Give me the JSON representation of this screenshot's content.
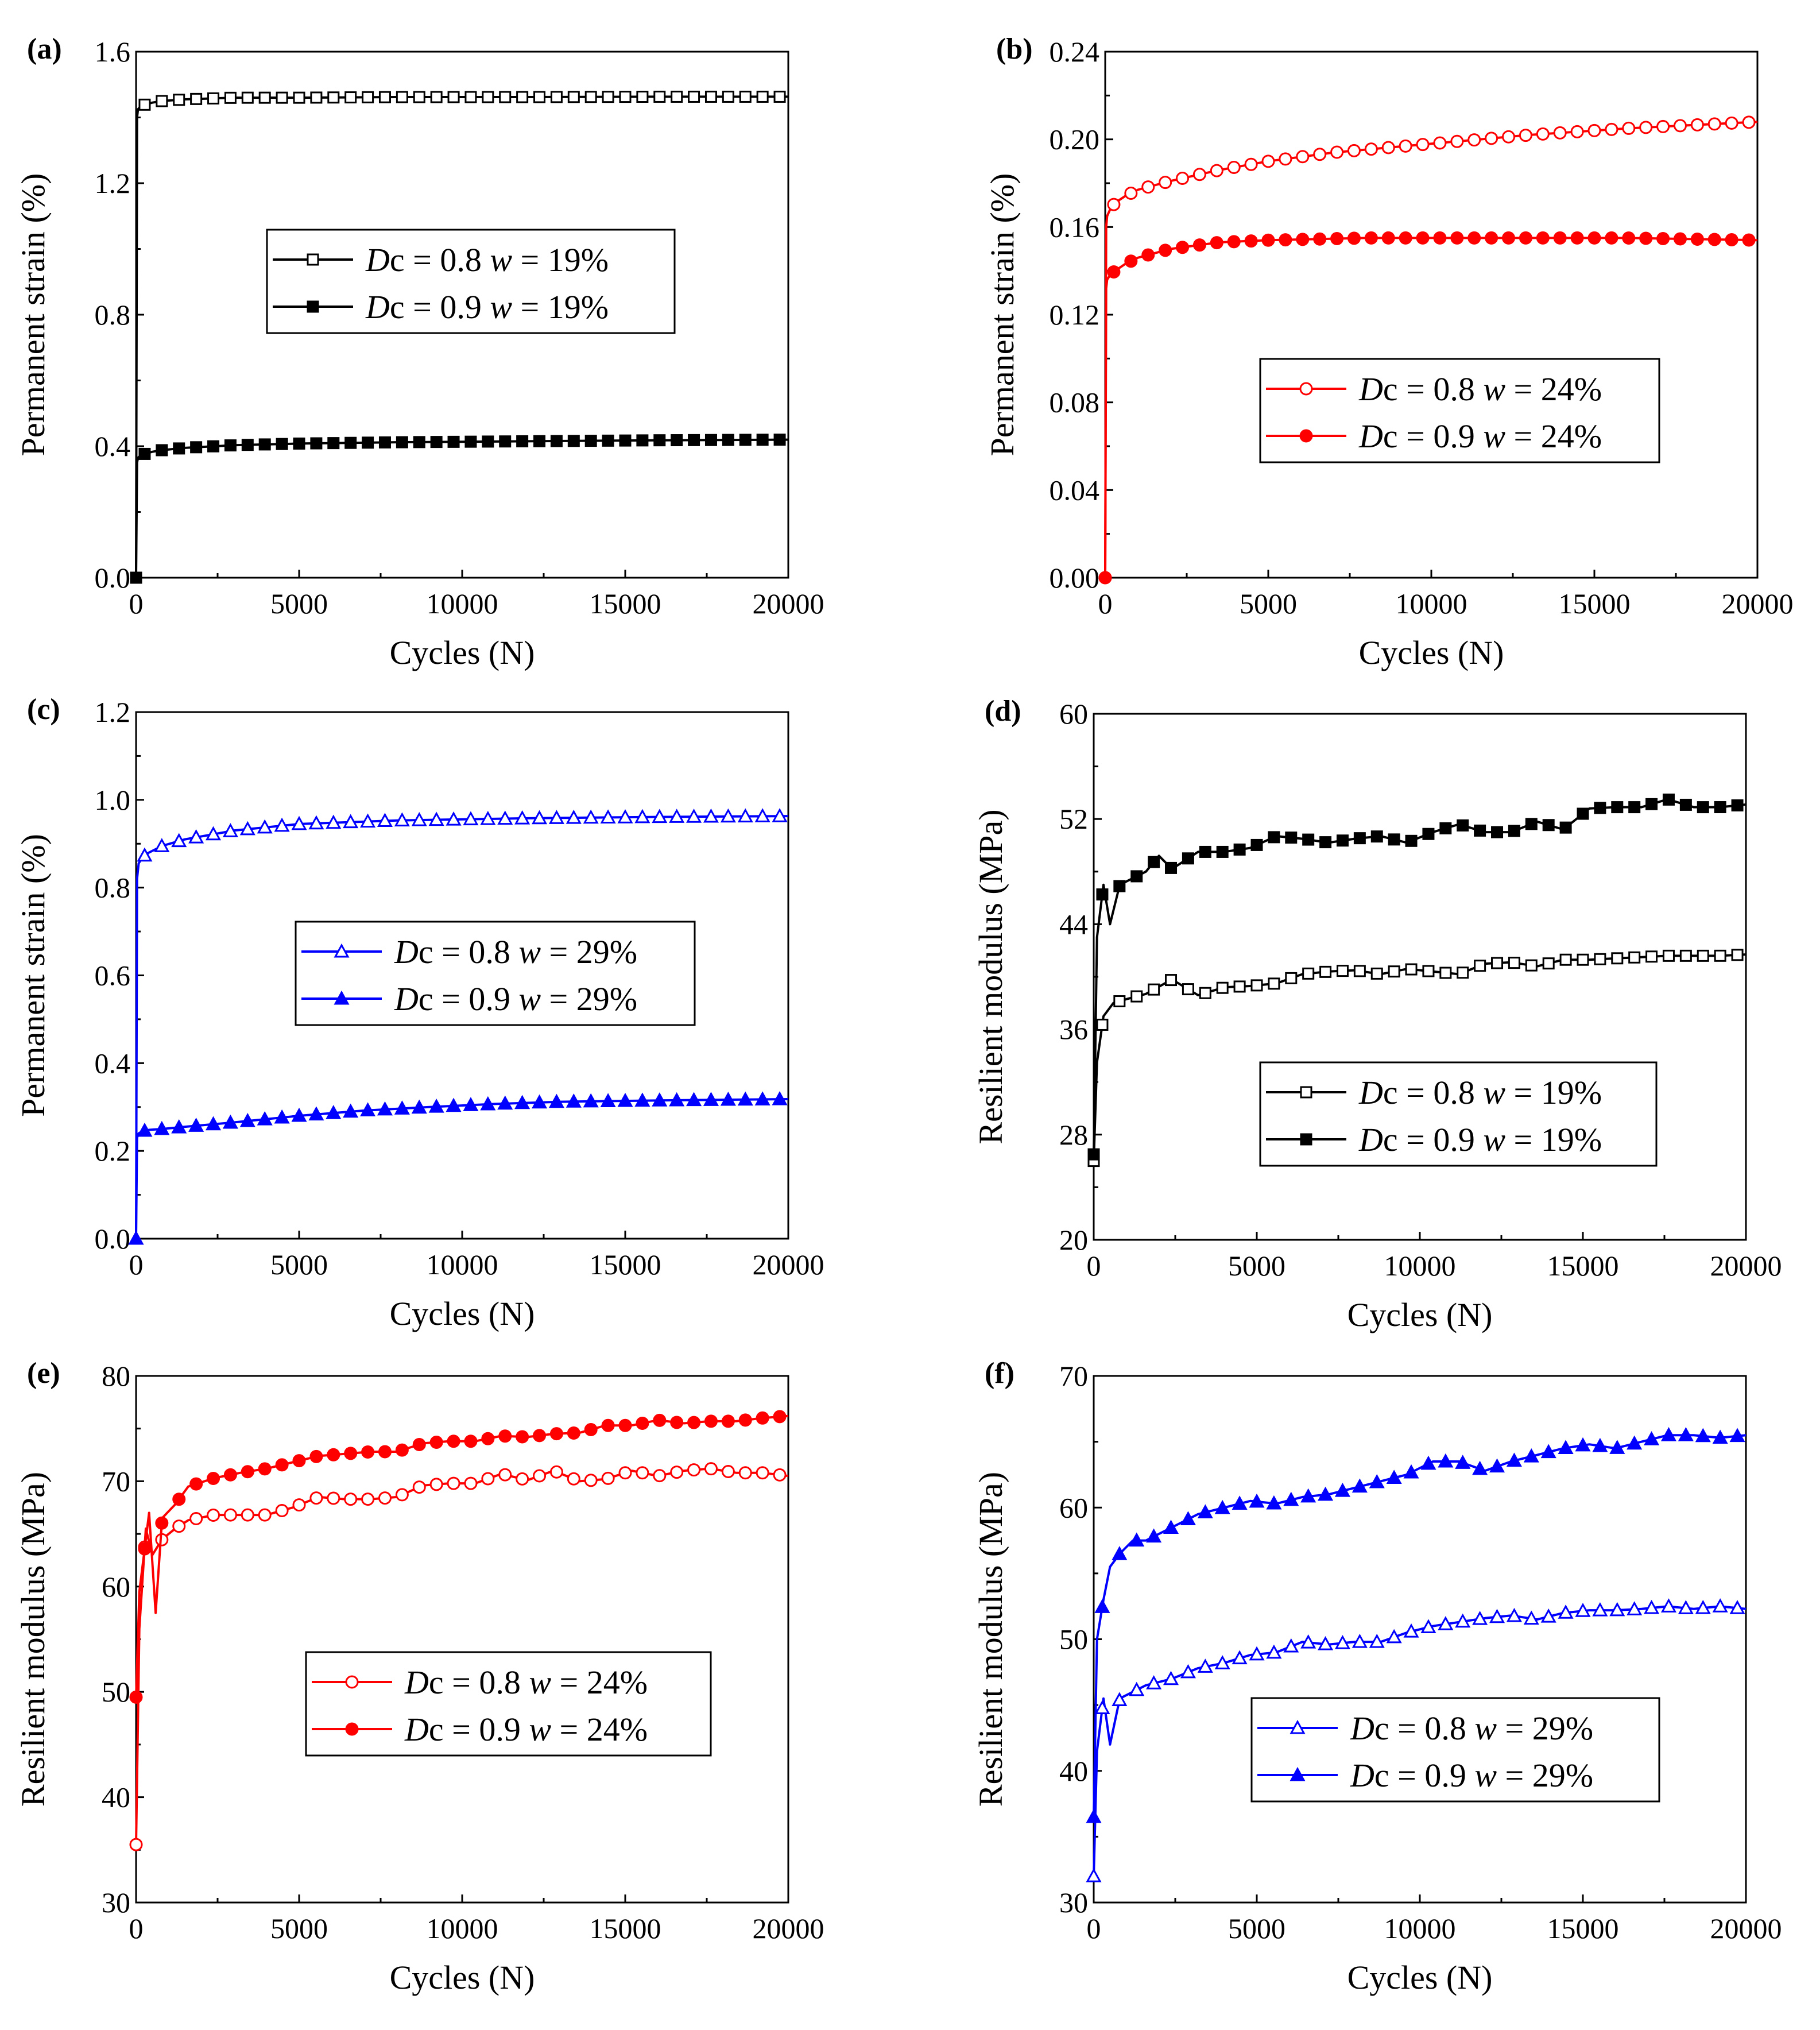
{
  "figure": {
    "title": ""
  },
  "colors": {
    "black": "#000000",
    "red": "#ff0000",
    "blue": "#0000ff"
  },
  "chart_data": [
    {
      "panel": "(a)",
      "type": "line",
      "xlabel": "Cycles (N)",
      "ylabel": "Permanent strain (%)",
      "xlim": [
        0,
        20000
      ],
      "ylim": [
        0,
        1.6
      ],
      "xticks": [
        "0",
        "5000",
        "10000",
        "15000",
        "20000"
      ],
      "yticks": [
        "0.0",
        "0.4",
        "0.8",
        "1.2",
        "1.6"
      ],
      "color": "#000000",
      "legend_position": "center",
      "series": [
        {
          "name": "Dc = 0.8 w = 19%",
          "legend": {
            "pre": "D",
            "mid": "c = 0.8 ",
            "it": "w",
            "post": " = 19%"
          },
          "marker": "square-open",
          "x": [
            0,
            30,
            60,
            150,
            300,
            500,
            800,
            1500,
            3000,
            5000,
            8000,
            12000,
            16000,
            20000
          ],
          "y": [
            0,
            1.4,
            1.425,
            1.435,
            1.44,
            1.445,
            1.45,
            1.455,
            1.46,
            1.46,
            1.462,
            1.462,
            1.463,
            1.463
          ]
        },
        {
          "name": "Dc = 0.9 w = 19%",
          "legend": {
            "pre": "D",
            "mid": "c = 0.9 ",
            "it": "w",
            "post": " = 19%"
          },
          "marker": "square-filled",
          "x": [
            0,
            30,
            60,
            150,
            300,
            500,
            800,
            1500,
            3000,
            5000,
            8000,
            12000,
            16000,
            20000
          ],
          "y": [
            0,
            0.35,
            0.365,
            0.372,
            0.378,
            0.383,
            0.388,
            0.395,
            0.403,
            0.408,
            0.412,
            0.415,
            0.418,
            0.42
          ]
        }
      ]
    },
    {
      "panel": "(b)",
      "type": "line",
      "xlabel": "Cycles (N)",
      "ylabel": "Permanent strain (%)",
      "xlim": [
        0,
        20000
      ],
      "ylim": [
        0,
        0.24
      ],
      "xticks": [
        "0",
        "5000",
        "10000",
        "15000",
        "20000"
      ],
      "yticks": [
        "0.00",
        "0.04",
        "0.08",
        "0.12",
        "0.16",
        "0.20",
        "0.24"
      ],
      "color": "#ff0000",
      "legend_position": "center-right",
      "series": [
        {
          "name": "Dc = 0.8 w = 24%",
          "legend": {
            "pre": "D",
            "mid": "c = 0.8 ",
            "it": "w",
            "post": " = 24%"
          },
          "marker": "circle-open",
          "x": [
            0,
            30,
            60,
            150,
            300,
            600,
            1000,
            2000,
            3500,
            5000,
            7000,
            10000,
            13000,
            16000,
            20000
          ],
          "y": [
            0,
            0.16,
            0.165,
            0.168,
            0.171,
            0.174,
            0.177,
            0.181,
            0.186,
            0.19,
            0.194,
            0.198,
            0.202,
            0.205,
            0.208
          ]
        },
        {
          "name": "Dc = 0.9 w = 24%",
          "legend": {
            "pre": "D",
            "mid": "c = 0.9 ",
            "it": "w",
            "post": " = 24%"
          },
          "marker": "circle-filled",
          "x": [
            0,
            30,
            60,
            150,
            300,
            600,
            1000,
            2000,
            3500,
            5000,
            8000,
            12000,
            16000,
            20000
          ],
          "y": [
            0,
            0.132,
            0.136,
            0.138,
            0.14,
            0.143,
            0.146,
            0.15,
            0.153,
            0.154,
            0.155,
            0.155,
            0.155,
            0.154
          ]
        }
      ]
    },
    {
      "panel": "(c)",
      "type": "line",
      "xlabel": "Cycles (N)",
      "ylabel": "Permanent strain (%)",
      "xlim": [
        0,
        20000
      ],
      "ylim": [
        0,
        1.2
      ],
      "xticks": [
        "0",
        "5000",
        "10000",
        "15000",
        "20000"
      ],
      "yticks": [
        "0.0",
        "0.2",
        "0.4",
        "0.6",
        "0.8",
        "1.0",
        "1.2"
      ],
      "color": "#0000ff",
      "legend_position": "center",
      "series": [
        {
          "name": "Dc = 0.8 w = 29%",
          "legend": {
            "pre": "D",
            "mid": "c = 0.8 ",
            "it": "w",
            "post": " = 29%"
          },
          "marker": "triangle-open",
          "x": [
            0,
            30,
            80,
            200,
            400,
            800,
            1500,
            3000,
            5000,
            8000,
            12000,
            16000,
            20000
          ],
          "y": [
            0,
            0.82,
            0.855,
            0.87,
            0.88,
            0.895,
            0.91,
            0.93,
            0.945,
            0.953,
            0.958,
            0.961,
            0.963
          ]
        },
        {
          "name": "Dc = 0.9 w = 29%",
          "legend": {
            "pre": "D",
            "mid": "c = 0.9 ",
            "it": "w",
            "post": " = 29%"
          },
          "marker": "triangle-filled",
          "x": [
            0,
            30,
            80,
            200,
            400,
            800,
            1500,
            3000,
            5000,
            7000,
            9000,
            11000,
            13000,
            16000,
            20000
          ],
          "y": [
            0,
            0.23,
            0.24,
            0.245,
            0.248,
            0.25,
            0.255,
            0.265,
            0.28,
            0.292,
            0.3,
            0.307,
            0.312,
            0.315,
            0.318
          ]
        }
      ]
    },
    {
      "panel": "(d)",
      "type": "line",
      "xlabel": "Cycles (N)",
      "ylabel": "Resilient modulus (MPa)",
      "xlim": [
        0,
        20000
      ],
      "ylim": [
        20,
        60
      ],
      "xticks": [
        "0",
        "5000",
        "10000",
        "15000",
        "20000"
      ],
      "yticks": [
        "20",
        "28",
        "36",
        "44",
        "52",
        "60"
      ],
      "color": "#000000",
      "legend_position": "lower-right",
      "series": [
        {
          "name": "Dc = 0.8 w = 19%",
          "legend": {
            "pre": "D",
            "mid": "c = 0.8 ",
            "it": "w",
            "post": " = 19%"
          },
          "marker": "square-open",
          "x": [
            0,
            100,
            300,
            600,
            1000,
            1600,
            2400,
            3200,
            4000,
            4800,
            5600,
            6400,
            7200,
            8000,
            8800,
            9600,
            10400,
            11200,
            12000,
            12800,
            13600,
            14400,
            15200,
            16000,
            16800,
            17600,
            18400,
            19200,
            20000
          ],
          "y": [
            26,
            33.5,
            37,
            38,
            38.3,
            38.7,
            39.8,
            38.6,
            39.2,
            39.3,
            39.5,
            40.2,
            40.4,
            40.5,
            40.2,
            40.6,
            40.4,
            40.2,
            41,
            41.1,
            40.8,
            41.3,
            41.3,
            41.4,
            41.5,
            41.6,
            41.6,
            41.6,
            41.7
          ]
        },
        {
          "name": "Dc = 0.9 w = 19%",
          "legend": {
            "pre": "D",
            "mid": "c = 0.9 ",
            "it": "w",
            "post": " = 19%"
          },
          "marker": "square-filled",
          "x": [
            0,
            100,
            300,
            500,
            800,
            1200,
            1600,
            2000,
            2400,
            3200,
            4000,
            4800,
            5600,
            6400,
            7200,
            8000,
            8800,
            9600,
            10400,
            11200,
            12000,
            12800,
            13600,
            14400,
            15200,
            16000,
            16800,
            17600,
            18400,
            19200,
            20000
          ],
          "y": [
            26.5,
            43,
            47,
            44,
            47,
            47.5,
            48,
            49.2,
            48.2,
            49.5,
            49.5,
            49.8,
            50.7,
            50.5,
            50.2,
            50.5,
            50.7,
            50.2,
            51,
            51.6,
            51,
            51,
            51.8,
            51.2,
            52.8,
            52.9,
            52.9,
            53.5,
            52.9,
            52.9,
            53.1
          ]
        }
      ]
    },
    {
      "panel": "(e)",
      "type": "line",
      "xlabel": "Cycles (N)",
      "ylabel": "Resilient modulus (MPa)",
      "xlim": [
        0,
        20000
      ],
      "ylim": [
        30,
        80
      ],
      "xticks": [
        "0",
        "5000",
        "10000",
        "15000",
        "20000"
      ],
      "yticks": [
        "30",
        "40",
        "50",
        "60",
        "70",
        "80"
      ],
      "color": "#ff0000",
      "legend_position": "lower-center",
      "series": [
        {
          "name": "Dc = 0.8 w = 24%",
          "legend": {
            "pre": "D",
            "mid": "c = 0.8 ",
            "it": "w",
            "post": " = 24%"
          },
          "marker": "circle-open",
          "x": [
            0,
            100,
            300,
            500,
            800,
            1200,
            1600,
            2400,
            3200,
            4000,
            4800,
            5600,
            6400,
            7200,
            8000,
            8800,
            9600,
            10400,
            11200,
            12000,
            12800,
            13600,
            14400,
            15200,
            16000,
            16800,
            17600,
            18400,
            19200,
            20000
          ],
          "y": [
            35.5,
            56,
            65.5,
            63,
            64.5,
            65.5,
            66.3,
            66.8,
            66.8,
            66.8,
            67.5,
            68.5,
            68.3,
            68.3,
            68.5,
            69.6,
            69.8,
            69.8,
            70.7,
            70.1,
            71,
            70,
            70.2,
            71,
            70.5,
            71,
            71.2,
            70.8,
            70.8,
            70.5
          ]
        },
        {
          "name": "Dc = 0.9 w = 24%",
          "legend": {
            "pre": "D",
            "mid": "c = 0.9 ",
            "it": "w",
            "post": " = 24%"
          },
          "marker": "circle-filled",
          "x": [
            0,
            100,
            200,
            400,
            600,
            800,
            1200,
            1600,
            2400,
            3200,
            4000,
            4800,
            5600,
            6400,
            7200,
            8000,
            8800,
            9600,
            10400,
            11200,
            12000,
            12800,
            13600,
            14400,
            15200,
            16000,
            16800,
            17600,
            18400,
            19200,
            20000
          ],
          "y": [
            49.5,
            59.5,
            62,
            67,
            57.5,
            66.5,
            67.8,
            69.5,
            70.3,
            70.8,
            71.2,
            71.8,
            72.4,
            72.6,
            72.8,
            72.8,
            73.6,
            73.8,
            73.8,
            74.3,
            74.2,
            74.5,
            74.6,
            75.3,
            75.3,
            75.8,
            75.5,
            75.7,
            75.7,
            76,
            76.2
          ]
        }
      ]
    },
    {
      "panel": "(f)",
      "type": "line",
      "xlabel": "Cycles (N)",
      "ylabel": "Resilient modulus (MPa)",
      "xlim": [
        0,
        20000
      ],
      "ylim": [
        30,
        70
      ],
      "xticks": [
        "0",
        "5000",
        "10000",
        "15000",
        "20000"
      ],
      "yticks": [
        "30",
        "40",
        "50",
        "60",
        "70"
      ],
      "color": "#0000ff",
      "legend_position": "lower-right",
      "series": [
        {
          "name": "Dc = 0.8 w = 29%",
          "legend": {
            "pre": "D",
            "mid": "c = 0.8 ",
            "it": "w",
            "post": " = 29%"
          },
          "marker": "triangle-open",
          "x": [
            0,
            100,
            300,
            500,
            800,
            1200,
            1600,
            2400,
            3200,
            4000,
            4800,
            5600,
            6400,
            7200,
            8000,
            8800,
            9600,
            10400,
            11200,
            12000,
            12800,
            13600,
            14400,
            15200,
            16000,
            16800,
            17600,
            18400,
            19200,
            20000
          ],
          "y": [
            32,
            41.5,
            45.5,
            42,
            45.5,
            46,
            46.5,
            47,
            47.8,
            48.2,
            48.8,
            49,
            49.8,
            49.6,
            49.8,
            49.8,
            50.5,
            51,
            51.3,
            51.6,
            51.8,
            51.5,
            52,
            52.2,
            52.2,
            52.3,
            52.5,
            52.3,
            52.5,
            52.3
          ]
        },
        {
          "name": "Dc = 0.9 w = 29%",
          "legend": {
            "pre": "D",
            "mid": "c = 0.9 ",
            "it": "w",
            "post": " = 29%"
          },
          "marker": "triangle-filled",
          "x": [
            0,
            100,
            300,
            500,
            800,
            1200,
            1600,
            2400,
            3200,
            4000,
            4800,
            5600,
            6400,
            7200,
            8000,
            8800,
            9600,
            10400,
            11200,
            12000,
            12800,
            13600,
            14400,
            15200,
            16000,
            16800,
            17600,
            18400,
            19200,
            20000
          ],
          "y": [
            36.5,
            50,
            53,
            55.5,
            56.5,
            57.5,
            57.5,
            58.5,
            59.5,
            60,
            60.5,
            60.3,
            60.8,
            61,
            61.5,
            62,
            62.5,
            63.5,
            63.5,
            62.8,
            63.5,
            64,
            64.5,
            64.8,
            64.5,
            65,
            65.5,
            65.5,
            65.3,
            65.5
          ]
        }
      ]
    }
  ]
}
